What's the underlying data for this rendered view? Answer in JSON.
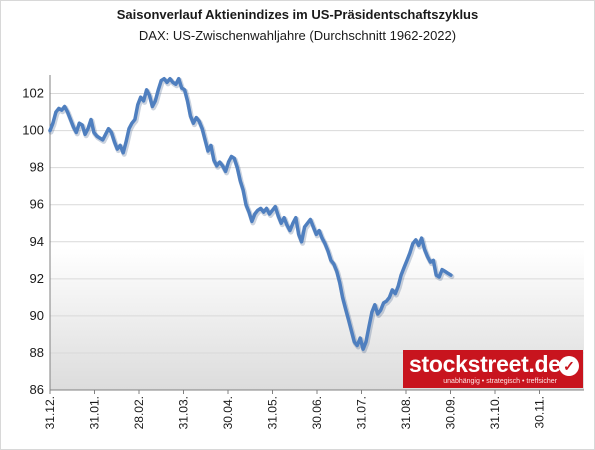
{
  "title": "Saisonverlauf Aktienindizes im US-Präsidentschaftszyklus",
  "subtitle": "DAX: US-Zwischenwahljahre (Durchschnitt 1962-2022)",
  "logo": {
    "text": "stockstreet.de",
    "tagline": "unabhängig • strategisch • treffsicher"
  },
  "colors": {
    "line": "#4f7fbf",
    "background_gradient_bottom": "#dcdcdc",
    "grid": "#d9d9d9",
    "logo": "#c8141e"
  },
  "chart_data": {
    "type": "line",
    "title": "Saisonverlauf Aktienindizes im US-Präsidentschaftszyklus",
    "subtitle": "DAX: US-Zwischenwahljahre (Durchschnitt 1962-2022)",
    "xlabel": "",
    "ylabel": "",
    "ylim": [
      86,
      103
    ],
    "yticks": [
      86,
      88,
      90,
      92,
      94,
      96,
      98,
      100,
      102
    ],
    "xticks": [
      "31.12.",
      "31.01.",
      "28.02.",
      "31.03.",
      "30.04.",
      "31.05.",
      "30.06.",
      "31.07.",
      "31.08.",
      "30.09.",
      "31.10.",
      "30.11."
    ],
    "grid": "horizontal",
    "x_range_days": [
      0,
      365
    ],
    "series": [
      {
        "points": [
          [
            0,
            100.0
          ],
          [
            2,
            100.4
          ],
          [
            4,
            101.0
          ],
          [
            6,
            101.2
          ],
          [
            8,
            101.1
          ],
          [
            10,
            101.3
          ],
          [
            12,
            101.0
          ],
          [
            14,
            100.6
          ],
          [
            16,
            100.2
          ],
          [
            18,
            99.9
          ],
          [
            20,
            100.4
          ],
          [
            22,
            100.3
          ],
          [
            24,
            99.8
          ],
          [
            26,
            100.1
          ],
          [
            28,
            100.6
          ],
          [
            30,
            99.9
          ],
          [
            32,
            99.7
          ],
          [
            34,
            99.6
          ],
          [
            36,
            99.5
          ],
          [
            38,
            99.8
          ],
          [
            40,
            100.1
          ],
          [
            42,
            99.9
          ],
          [
            44,
            99.4
          ],
          [
            46,
            99.0
          ],
          [
            48,
            99.2
          ],
          [
            50,
            98.8
          ],
          [
            52,
            99.4
          ],
          [
            54,
            100.1
          ],
          [
            56,
            100.4
          ],
          [
            58,
            100.6
          ],
          [
            60,
            101.4
          ],
          [
            62,
            101.8
          ],
          [
            64,
            101.6
          ],
          [
            66,
            102.2
          ],
          [
            68,
            101.9
          ],
          [
            70,
            101.3
          ],
          [
            72,
            101.6
          ],
          [
            74,
            102.2
          ],
          [
            76,
            102.7
          ],
          [
            78,
            102.8
          ],
          [
            80,
            102.6
          ],
          [
            82,
            102.8
          ],
          [
            84,
            102.6
          ],
          [
            86,
            102.5
          ],
          [
            88,
            102.8
          ],
          [
            90,
            102.3
          ],
          [
            92,
            102.2
          ],
          [
            94,
            101.6
          ],
          [
            96,
            100.8
          ],
          [
            98,
            100.4
          ],
          [
            100,
            100.7
          ],
          [
            102,
            100.5
          ],
          [
            104,
            100.1
          ],
          [
            106,
            99.5
          ],
          [
            108,
            98.9
          ],
          [
            110,
            99.2
          ],
          [
            112,
            98.4
          ],
          [
            114,
            98.1
          ],
          [
            116,
            98.3
          ],
          [
            118,
            98.1
          ],
          [
            120,
            97.8
          ],
          [
            122,
            98.3
          ],
          [
            124,
            98.6
          ],
          [
            126,
            98.5
          ],
          [
            128,
            98.0
          ],
          [
            130,
            97.3
          ],
          [
            132,
            96.8
          ],
          [
            134,
            96.0
          ],
          [
            136,
            95.6
          ],
          [
            138,
            95.1
          ],
          [
            140,
            95.5
          ],
          [
            142,
            95.7
          ],
          [
            144,
            95.8
          ],
          [
            146,
            95.6
          ],
          [
            148,
            95.8
          ],
          [
            150,
            95.5
          ],
          [
            152,
            95.7
          ],
          [
            154,
            95.9
          ],
          [
            156,
            95.4
          ],
          [
            158,
            95.0
          ],
          [
            160,
            95.3
          ],
          [
            162,
            94.9
          ],
          [
            164,
            94.6
          ],
          [
            166,
            95.0
          ],
          [
            168,
            95.3
          ],
          [
            170,
            94.4
          ],
          [
            172,
            94.0
          ],
          [
            174,
            94.8
          ],
          [
            176,
            95.0
          ],
          [
            178,
            95.2
          ],
          [
            180,
            94.8
          ],
          [
            182,
            94.4
          ],
          [
            184,
            94.6
          ],
          [
            186,
            94.2
          ],
          [
            188,
            93.9
          ],
          [
            190,
            93.5
          ],
          [
            192,
            93.0
          ],
          [
            194,
            92.8
          ],
          [
            196,
            92.4
          ],
          [
            198,
            91.8
          ],
          [
            200,
            91.0
          ],
          [
            202,
            90.4
          ],
          [
            204,
            89.8
          ],
          [
            206,
            89.2
          ],
          [
            208,
            88.6
          ],
          [
            210,
            88.4
          ],
          [
            212,
            88.8
          ],
          [
            214,
            88.2
          ],
          [
            216,
            88.6
          ],
          [
            218,
            89.4
          ],
          [
            220,
            90.2
          ],
          [
            222,
            90.6
          ],
          [
            224,
            90.1
          ],
          [
            226,
            90.3
          ],
          [
            228,
            90.7
          ],
          [
            230,
            90.8
          ],
          [
            232,
            91.0
          ],
          [
            234,
            91.4
          ],
          [
            236,
            91.2
          ],
          [
            238,
            91.6
          ],
          [
            240,
            92.2
          ],
          [
            242,
            92.6
          ],
          [
            244,
            93.0
          ],
          [
            246,
            93.4
          ],
          [
            248,
            93.9
          ],
          [
            250,
            94.1
          ],
          [
            252,
            93.8
          ],
          [
            254,
            94.2
          ],
          [
            256,
            93.6
          ],
          [
            258,
            93.2
          ],
          [
            260,
            92.9
          ],
          [
            262,
            93.0
          ],
          [
            264,
            92.2
          ],
          [
            266,
            92.1
          ],
          [
            268,
            92.5
          ],
          [
            270,
            92.4
          ],
          [
            272,
            92.3
          ],
          [
            274,
            92.2
          ]
        ]
      }
    ]
  }
}
